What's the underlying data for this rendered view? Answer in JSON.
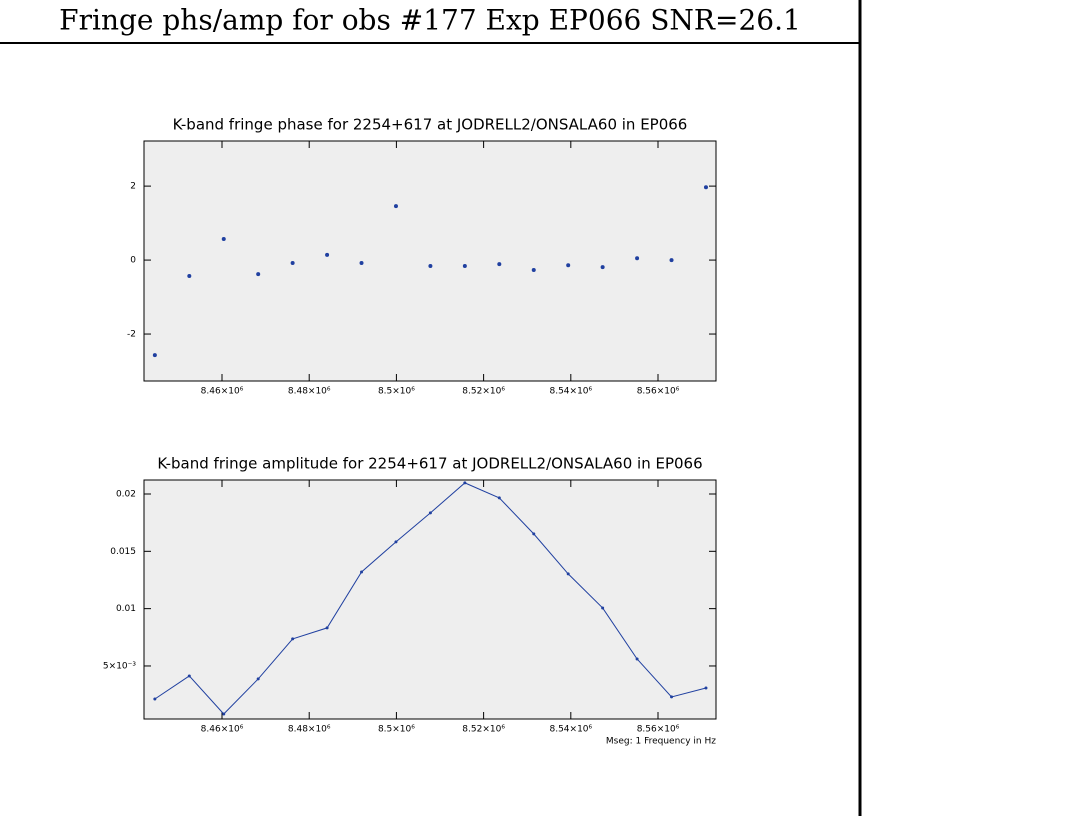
{
  "header": {
    "title": "Fringe phs/amp for obs #177 Exp EP066 SNR=26.1"
  },
  "chart_data": [
    {
      "type": "scatter",
      "title": "K-band fringe phase for 2254+617 at JODRELL2/ONSALA60 in EP066",
      "x": [
        8444600,
        8452500,
        8460400,
        8468300,
        8476200,
        8484100,
        8492000,
        8499900,
        8507800,
        8515700,
        8523600,
        8531500,
        8539400,
        8547300,
        8555200,
        8563100,
        8571000
      ],
      "series": [
        {
          "color": "#2040a0",
          "values": [
            -2.57,
            -0.43,
            0.57,
            -0.38,
            -0.08,
            0.14,
            -0.08,
            1.46,
            -0.16,
            -0.16,
            -0.11,
            -0.27,
            -0.14,
            -0.19,
            0.05,
            0.0,
            1.97
          ]
        }
      ],
      "xlim": [
        8442110,
        8573300
      ],
      "ylim": [
        -3.27,
        3.22
      ],
      "xticks": [
        {
          "value": 8460000,
          "label": "8.46×10⁶"
        },
        {
          "value": 8480000,
          "label": "8.48×10⁶"
        },
        {
          "value": 8500000,
          "label": "8.5×10⁶"
        },
        {
          "value": 8520000,
          "label": "8.52×10⁶"
        },
        {
          "value": 8540000,
          "label": "8.54×10⁶"
        },
        {
          "value": 8560000,
          "label": "8.56×10⁶"
        }
      ],
      "yticks": [
        -2,
        0,
        2
      ]
    },
    {
      "type": "line",
      "title": "K-band fringe amplitude for 2254+617 at JODRELL2/ONSALA60 in EP066",
      "xlabel": "Mseg: 1 Frequency in Hz",
      "x": [
        8444600,
        8452500,
        8460400,
        8468300,
        8476200,
        8484100,
        8492000,
        8499900,
        8507800,
        8515700,
        8523600,
        8531500,
        8539400,
        8547300,
        8555200,
        8563100,
        8571000
      ],
      "series": [
        {
          "color": "#2040a0",
          "values": [
            0.00212,
            0.00413,
            0.00081,
            0.00387,
            0.00736,
            0.00832,
            0.0132,
            0.01582,
            0.01835,
            0.02097,
            0.01966,
            0.01652,
            0.01303,
            0.01006,
            0.00561,
            0.0023,
            0.00308
          ]
        }
      ],
      "xlim": [
        8442110,
        8573300
      ],
      "ylim": [
        0.000375,
        0.02122
      ],
      "xticks": [
        {
          "value": 8460000,
          "label": "8.46×10⁶"
        },
        {
          "value": 8480000,
          "label": "8.48×10⁶"
        },
        {
          "value": 8500000,
          "label": "8.5×10⁶"
        },
        {
          "value": 8520000,
          "label": "8.52×10⁶"
        },
        {
          "value": 8540000,
          "label": "8.54×10⁶"
        },
        {
          "value": 8560000,
          "label": "8.56×10⁶"
        }
      ],
      "yticks": [
        {
          "value": 0.005,
          "label": "5×10⁻³"
        },
        0.01,
        0.015,
        0.02
      ]
    }
  ]
}
